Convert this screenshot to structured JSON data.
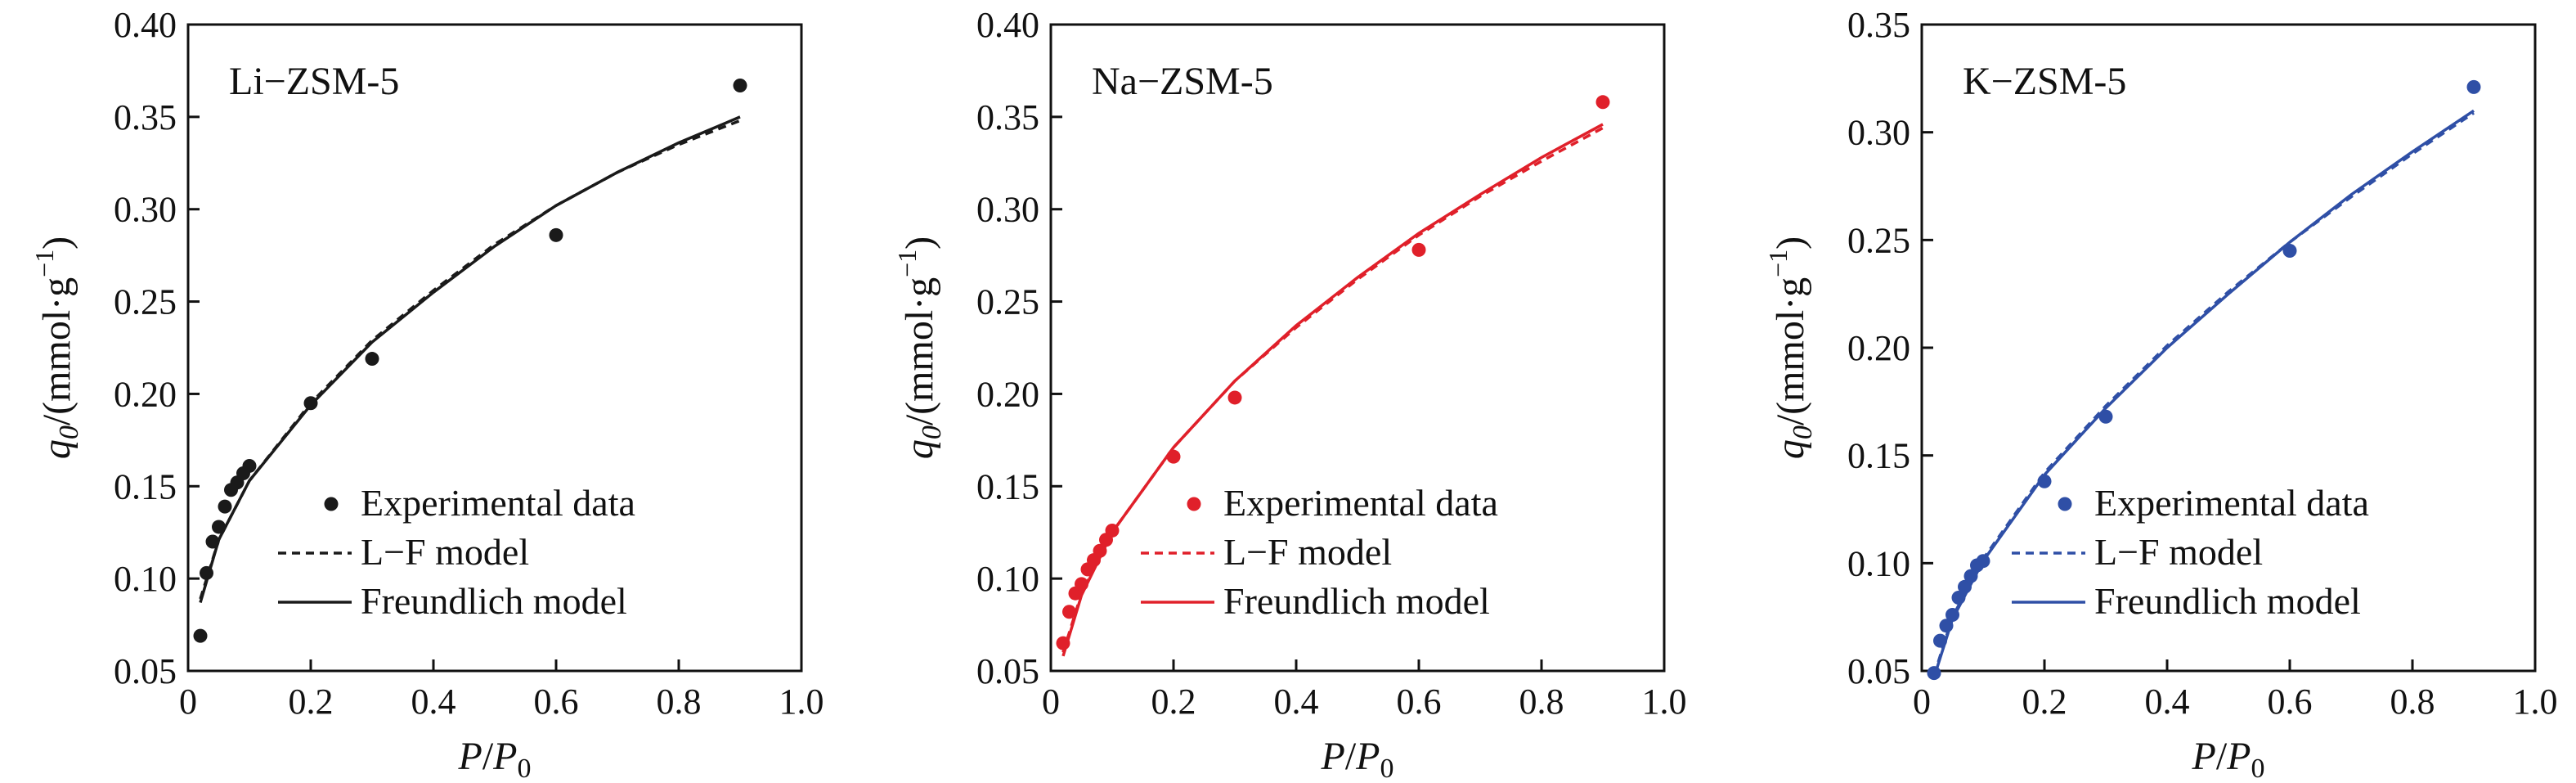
{
  "chart_data": [
    {
      "type": "scatter",
      "panel_label": "Li−ZSM-5",
      "color": "#1a1a1a",
      "xlim": [
        0,
        1.0
      ],
      "ylim": [
        0.05,
        0.4
      ],
      "xticks": [
        "0",
        "0.2",
        "0.4",
        "0.6",
        "0.8",
        "1.0"
      ],
      "yticks": [
        "0.05",
        "0.10",
        "0.15",
        "0.20",
        "0.25",
        "0.30",
        "0.35",
        "0.40"
      ],
      "experimental": {
        "x": [
          0.02,
          0.03,
          0.04,
          0.05,
          0.06,
          0.07,
          0.08,
          0.09,
          0.1,
          0.2,
          0.3,
          0.6,
          0.9
        ],
        "y": [
          0.069,
          0.103,
          0.12,
          0.128,
          0.139,
          0.148,
          0.152,
          0.157,
          0.161,
          0.195,
          0.219,
          0.286,
          0.367
        ]
      },
      "lf_model": {
        "x": [
          0.02,
          0.05,
          0.1,
          0.2,
          0.3,
          0.4,
          0.5,
          0.6,
          0.7,
          0.8,
          0.9
        ],
        "y": [
          0.089,
          0.121,
          0.153,
          0.195,
          0.229,
          0.256,
          0.281,
          0.302,
          0.32,
          0.335,
          0.348
        ]
      },
      "freundlich_model": {
        "x": [
          0.02,
          0.05,
          0.1,
          0.2,
          0.3,
          0.4,
          0.5,
          0.6,
          0.7,
          0.8,
          0.9
        ],
        "y": [
          0.087,
          0.121,
          0.153,
          0.194,
          0.228,
          0.255,
          0.28,
          0.302,
          0.32,
          0.336,
          0.35
        ]
      },
      "legend": [
        "Experimental data",
        "L−F model",
        "Freundlich model"
      ],
      "xlabel": "P/P0",
      "ylabel": "q0/(mmol·g−1)"
    },
    {
      "type": "scatter",
      "panel_label": "Na−ZSM-5",
      "color": "#e0202a",
      "xlim": [
        0,
        1.0
      ],
      "ylim": [
        0.05,
        0.4
      ],
      "xticks": [
        "0",
        "0.2",
        "0.4",
        "0.6",
        "0.8",
        "1.0"
      ],
      "yticks": [
        "0.05",
        "0.10",
        "0.15",
        "0.20",
        "0.25",
        "0.30",
        "0.35",
        "0.40"
      ],
      "experimental": {
        "x": [
          0.02,
          0.03,
          0.04,
          0.05,
          0.06,
          0.07,
          0.08,
          0.09,
          0.1,
          0.2,
          0.3,
          0.6,
          0.9
        ],
        "y": [
          0.065,
          0.082,
          0.092,
          0.097,
          0.105,
          0.11,
          0.115,
          0.121,
          0.126,
          0.166,
          0.198,
          0.278,
          0.358
        ]
      },
      "lf_model": {
        "x": [
          0.02,
          0.05,
          0.1,
          0.2,
          0.3,
          0.4,
          0.5,
          0.6,
          0.7,
          0.8,
          0.9
        ],
        "y": [
          0.06,
          0.092,
          0.125,
          0.171,
          0.207,
          0.236,
          0.262,
          0.286,
          0.307,
          0.326,
          0.344
        ]
      },
      "freundlich_model": {
        "x": [
          0.02,
          0.05,
          0.1,
          0.2,
          0.3,
          0.4,
          0.5,
          0.6,
          0.7,
          0.8,
          0.9
        ],
        "y": [
          0.058,
          0.091,
          0.125,
          0.171,
          0.207,
          0.237,
          0.263,
          0.287,
          0.308,
          0.328,
          0.346
        ]
      },
      "legend": [
        "Experimental data",
        "L−F model",
        "Freundlich model"
      ],
      "xlabel": "P/P0",
      "ylabel": "q0/(mmol·g−1)"
    },
    {
      "type": "scatter",
      "panel_label": "K−ZSM-5",
      "color": "#2f4fa6",
      "xlim": [
        0,
        1.0
      ],
      "ylim": [
        0.05,
        0.35
      ],
      "xticks": [
        "0",
        "0.2",
        "0.4",
        "0.6",
        "0.8",
        "1.0"
      ],
      "yticks": [
        "0.05",
        "0.10",
        "0.15",
        "0.20",
        "0.25",
        "0.30",
        "0.35"
      ],
      "experimental": {
        "x": [
          0.02,
          0.03,
          0.04,
          0.05,
          0.06,
          0.07,
          0.08,
          0.09,
          0.1,
          0.2,
          0.3,
          0.6,
          0.9
        ],
        "y": [
          0.049,
          0.064,
          0.071,
          0.076,
          0.084,
          0.089,
          0.094,
          0.099,
          0.101,
          0.138,
          0.168,
          0.245,
          0.321
        ]
      },
      "lf_model": {
        "x": [
          0.02,
          0.05,
          0.1,
          0.2,
          0.3,
          0.4,
          0.5,
          0.6,
          0.7,
          0.8,
          0.9
        ],
        "y": [
          0.048,
          0.075,
          0.102,
          0.142,
          0.173,
          0.201,
          0.226,
          0.249,
          0.27,
          0.29,
          0.309
        ]
      },
      "freundlich_model": {
        "x": [
          0.02,
          0.05,
          0.1,
          0.2,
          0.3,
          0.4,
          0.5,
          0.6,
          0.7,
          0.8,
          0.9
        ],
        "y": [
          0.047,
          0.074,
          0.101,
          0.141,
          0.172,
          0.2,
          0.225,
          0.249,
          0.271,
          0.291,
          0.31
        ]
      },
      "legend": [
        "Experimental data",
        "L−F model",
        "Freundlich model"
      ],
      "xlabel": "P/P0",
      "ylabel": "q0/(mmol·g−1)"
    }
  ]
}
